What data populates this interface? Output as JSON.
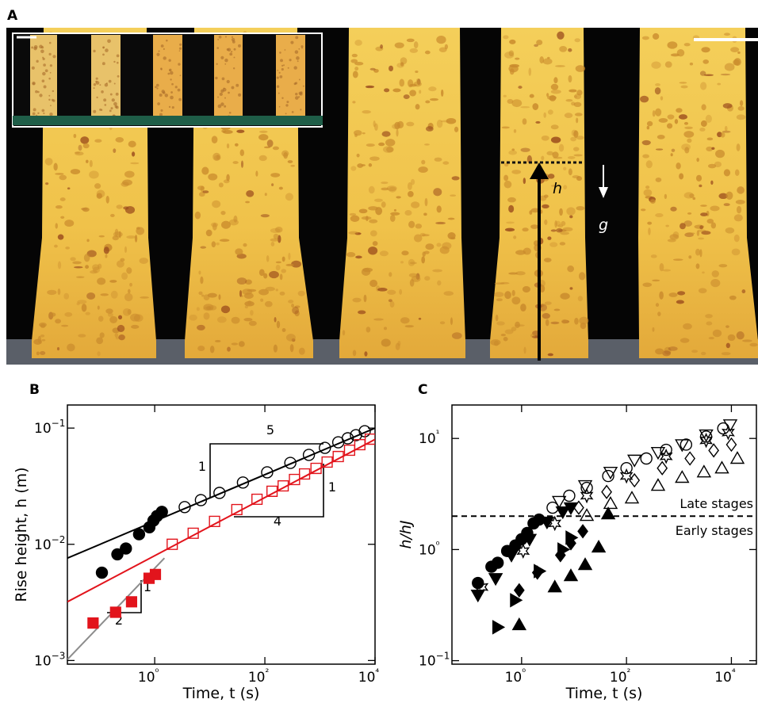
{
  "panel_a": {
    "label": "A",
    "h": "h",
    "g": "g"
  },
  "chart_data": [
    {
      "type": "scatter",
      "panel_label": "B",
      "xlabel": "Time, t (s)",
      "ylabel": "Rise height, h (m)",
      "log_x": true,
      "log_y": true,
      "xlim": [
        0.026,
        10000
      ],
      "ylim": [
        0.00093,
        0.158
      ],
      "xticks": [
        {
          "value": 1,
          "label": "10⁰"
        },
        {
          "value": 100,
          "label": "10²"
        },
        {
          "value": 10000,
          "label": "10⁴"
        }
      ],
      "yticks": [
        {
          "value": 0.001,
          "label": "10−3"
        },
        {
          "value": 0.01,
          "label": "10−2"
        },
        {
          "value": 0.1,
          "label": "10−1"
        }
      ],
      "annotations": [
        "5",
        "1",
        "4",
        "1",
        "1",
        "2"
      ],
      "series": [
        {
          "style": "line",
          "color": "#000000",
          "x": [
            0.026,
            10000
          ],
          "y": [
            0.0076,
            0.1
          ]
        },
        {
          "style": "line",
          "color": "#e2141c",
          "x": [
            0.026,
            10000
          ],
          "y": [
            0.0032,
            0.08
          ]
        },
        {
          "style": "line",
          "color": "#8c8c8c",
          "x": [
            0.026,
            1.5
          ],
          "y": [
            0.00102,
            0.0076
          ]
        },
        {
          "style": "marker",
          "marker": "circle",
          "filled": true,
          "color": "#000000",
          "x": [
            0.11,
            0.21,
            0.3,
            0.52,
            0.8,
            0.95,
            1.1,
            1.35
          ],
          "y": [
            0.0057,
            0.0082,
            0.0092,
            0.0122,
            0.014,
            0.016,
            0.0175,
            0.019
          ]
        },
        {
          "style": "marker",
          "marker": "circle",
          "filled": false,
          "color": "#000000",
          "x": [
            3.5,
            6.9,
            15,
            40,
            110,
            290,
            630,
            1230,
            2150,
            3200,
            4500,
            6500
          ],
          "y": [
            0.0209,
            0.024,
            0.0277,
            0.034,
            0.0416,
            0.0502,
            0.0588,
            0.0676,
            0.0755,
            0.0817,
            0.0869,
            0.094
          ]
        },
        {
          "style": "marker",
          "marker": "square",
          "filled": true,
          "color": "#e2141c",
          "x": [
            0.076,
            0.195,
            0.38,
            0.79,
            1.03
          ],
          "y": [
            0.0021,
            0.0026,
            0.0032,
            0.0051,
            0.0055
          ]
        },
        {
          "style": "marker",
          "marker": "square",
          "filled": false,
          "color": "#e2141c",
          "x": [
            2.08,
            5.0,
            12.2,
            31,
            72,
            135,
            215,
            345,
            525,
            850,
            1350,
            2150,
            3450,
            5300,
            8200
          ],
          "y": [
            0.01,
            0.01245,
            0.01574,
            0.0199,
            0.0244,
            0.0286,
            0.0318,
            0.0361,
            0.0403,
            0.045,
            0.051,
            0.0569,
            0.0645,
            0.072,
            0.0803
          ]
        }
      ]
    },
    {
      "type": "scatter",
      "panel_label": "C",
      "xlabel": "Time, t (s)",
      "ylabel": "h/hJ",
      "log_x": true,
      "log_y": true,
      "xlim": [
        0.047,
        30000
      ],
      "ylim": [
        0.093,
        20
      ],
      "xticks": [
        {
          "value": 1,
          "label": "10⁰"
        },
        {
          "value": 100,
          "label": "10²"
        },
        {
          "value": 10000,
          "label": "10⁴"
        }
      ],
      "yticks": [
        {
          "value": 0.1,
          "label": "10−1"
        },
        {
          "value": 1,
          "label": "10⁰"
        },
        {
          "value": 10,
          "label": "10¹"
        }
      ],
      "hline": 2,
      "hline_labels": [
        "Late stages",
        "Early stages"
      ],
      "series": [
        {
          "style": "marker",
          "marker": "circle",
          "filled": true,
          "color": "#000000",
          "x": [
            0.147,
            0.266,
            0.35,
            0.53,
            0.76,
            1.0,
            1.28,
            1.69,
            2.15
          ],
          "y": [
            0.5,
            0.7,
            0.76,
            0.97,
            1.09,
            1.24,
            1.41,
            1.72,
            1.86
          ]
        },
        {
          "style": "marker",
          "marker": "triangle-down",
          "filled": true,
          "color": "#000000",
          "x": [
            0.147,
            0.32,
            0.64,
            1.42,
            3.05,
            6.1,
            8.7
          ],
          "y": [
            0.39,
            0.55,
            0.89,
            1.24,
            1.77,
            2.19,
            2.38
          ]
        },
        {
          "style": "marker",
          "marker": "triangle-right",
          "filled": true,
          "color": "#000000",
          "x": [
            0.35,
            0.76,
            2.15,
            6.1,
            8.7
          ],
          "y": [
            0.2,
            0.35,
            0.64,
            1.0,
            1.28
          ]
        },
        {
          "style": "marker",
          "marker": "diamond",
          "filled": true,
          "color": "#000000",
          "x": [
            0.9,
            2.0,
            5.5,
            8.7,
            14.7
          ],
          "y": [
            0.43,
            0.62,
            0.89,
            1.14,
            1.46
          ]
        },
        {
          "style": "marker",
          "marker": "triangle-up",
          "filled": true,
          "color": "#000000",
          "x": [
            0.9,
            4.3,
            8.7,
            16.3,
            29.5,
            44.8
          ],
          "y": [
            0.21,
            0.46,
            0.58,
            0.73,
            1.05,
            2.09
          ]
        },
        {
          "style": "marker",
          "marker": "circle",
          "filled": false,
          "color": "#000000",
          "x": [
            3.9,
            8.1,
            17.5,
            44.8,
            100,
            239,
            570,
            1370,
            3300,
            7000
          ],
          "y": [
            2.38,
            3.05,
            3.59,
            4.59,
            5.4,
            6.6,
            7.9,
            8.8,
            10.4,
            12.3
          ]
        },
        {
          "style": "marker",
          "marker": "triangle-down",
          "filled": false,
          "color": "#000000",
          "x": [
            5.2,
            16.3,
            49.6,
            142,
            400,
            1150,
            3300,
            9500
          ],
          "y": [
            2.72,
            3.77,
            4.98,
            6.4,
            7.5,
            8.8,
            10.8,
            13.3
          ]
        },
        {
          "style": "marker",
          "marker": "star",
          "filled": false,
          "color": "#000000",
          "x": [
            0.175,
            1.07,
            4.3,
            17.5,
            100,
            570,
            3300,
            8700
          ],
          "y": [
            0.46,
            0.97,
            1.72,
            3.05,
            4.59,
            6.9,
            9.6,
            11.3
          ]
        },
        {
          "style": "marker",
          "marker": "diamond",
          "filled": false,
          "color": "#000000",
          "x": [
            12.3,
            41.8,
            142,
            480,
            1620,
            4600,
            10000
          ],
          "y": [
            2.38,
            3.3,
            4.2,
            5.4,
            6.6,
            7.8,
            8.8
          ]
        },
        {
          "style": "marker",
          "marker": "triangle-up",
          "filled": false,
          "color": "#000000",
          "x": [
            17.5,
            49.6,
            127,
            400,
            1150,
            3000,
            6600,
            13000
          ],
          "y": [
            2.02,
            2.59,
            2.9,
            3.77,
            4.45,
            4.98,
            5.4,
            6.6
          ]
        }
      ]
    }
  ]
}
